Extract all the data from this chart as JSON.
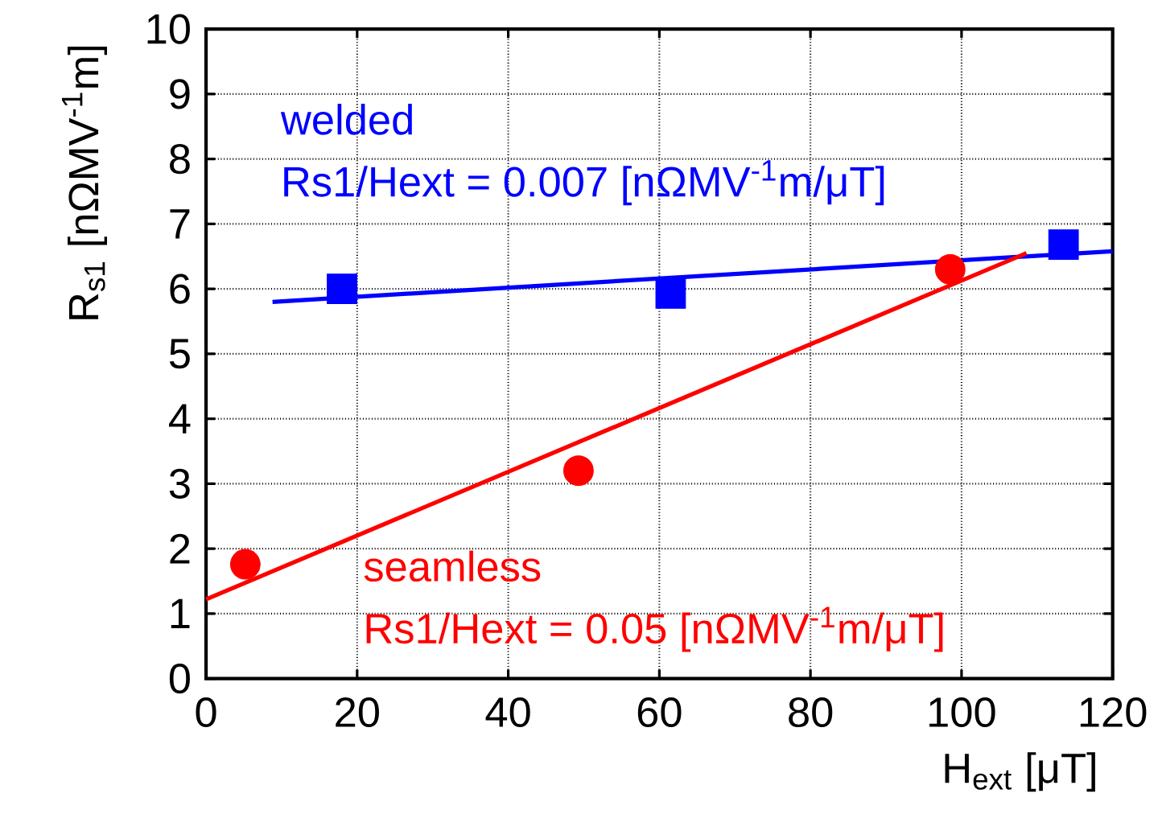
{
  "chart_data": {
    "type": "scatter",
    "xlabel": "H$_{ext}$ [μT]",
    "ylabel": "R$_{s1}$ [nΩMV$^{-1}$m]",
    "xlim": [
      0,
      120
    ],
    "ylim": [
      0,
      10
    ],
    "xticks": [
      0,
      20,
      40,
      60,
      80,
      100,
      120
    ],
    "yticks": [
      0,
      1,
      2,
      3,
      4,
      5,
      6,
      7,
      8,
      9,
      10
    ],
    "grid": true,
    "series": [
      {
        "name": "welded",
        "color": "#0000ff",
        "marker": "square",
        "x": [
          18,
          61.5,
          113.5
        ],
        "values": [
          6.0,
          5.93,
          6.68
        ]
      },
      {
        "name": "seamless",
        "color": "#ff0000",
        "marker": "circle",
        "x": [
          5.2,
          49.3,
          98.5
        ],
        "values": [
          1.76,
          3.2,
          6.3
        ]
      },
      {
        "type": "line",
        "color": "#0000ff",
        "x": [
          8.8,
          120
        ],
        "values": [
          5.8,
          6.58
        ]
      },
      {
        "type": "line",
        "color": "#ff0000",
        "x": [
          0,
          108.6
        ],
        "values": [
          1.22,
          6.55
        ]
      }
    ],
    "annotations": [
      "Rs1/Hext = 0.007 [nΩMV$^{-1}$m/μT]",
      "Rs1/Hext = 0.05 [nΩMV$^{-1}$m/μT]"
    ]
  }
}
